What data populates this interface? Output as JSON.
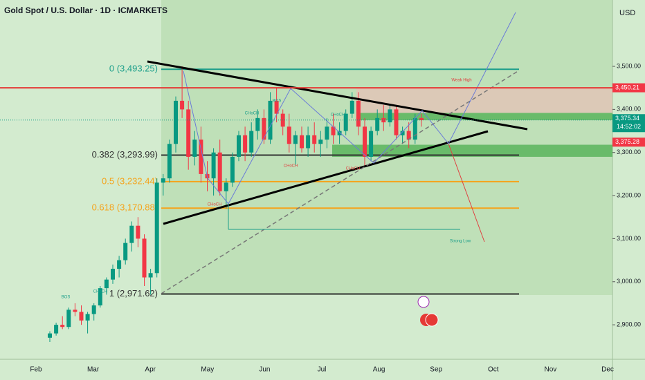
{
  "chart_data": {
    "type": "candlestick",
    "title": "Gold Spot / U.S. Dollar · 1D · ICMARKETS",
    "currency": "USD",
    "categories": [
      "Feb",
      "Mar",
      "Apr",
      "May",
      "Jun",
      "Jul",
      "Aug",
      "Sep",
      "Oct",
      "Nov",
      "Dec"
    ],
    "ylim": [
      2820,
      3654
    ],
    "yticks": [
      {
        "value": 2900,
        "label": "2,900.00"
      },
      {
        "value": 3000,
        "label": "3,000.00"
      },
      {
        "value": 3100,
        "label": "3,100.00"
      },
      {
        "value": 3200,
        "label": "3,200.00"
      },
      {
        "value": 3300,
        "label": "3,300.00"
      },
      {
        "value": 3400,
        "label": "3,400.00"
      },
      {
        "value": 3500,
        "label": "3,500.00"
      }
    ],
    "up_color": "#089981",
    "down_color": "#f23645",
    "candles": [
      [
        2870,
        2885,
        2860,
        2880
      ],
      [
        2880,
        2905,
        2875,
        2900
      ],
      [
        2900,
        2920,
        2890,
        2895
      ],
      [
        2895,
        2940,
        2890,
        2935
      ],
      [
        2935,
        2950,
        2920,
        2930
      ],
      [
        2930,
        2945,
        2900,
        2910
      ],
      [
        2910,
        2930,
        2880,
        2925
      ],
      [
        2925,
        2950,
        2910,
        2945
      ],
      [
        2945,
        2990,
        2940,
        2985
      ],
      [
        2985,
        3010,
        2970,
        3005
      ],
      [
        3005,
        3040,
        2995,
        3030
      ],
      [
        3030,
        3060,
        3010,
        3050
      ],
      [
        3050,
        3100,
        3040,
        3090
      ],
      [
        3090,
        3140,
        3070,
        3130
      ],
      [
        3130,
        3150,
        3080,
        3100
      ],
      [
        3100,
        3110,
        2990,
        3010
      ],
      [
        3010,
        3030,
        2970,
        3020
      ],
      [
        3020,
        3240,
        3010,
        3230
      ],
      [
        3230,
        3250,
        3200,
        3240
      ],
      [
        3240,
        3330,
        3230,
        3320
      ],
      [
        3320,
        3430,
        3300,
        3420
      ],
      [
        3420,
        3500,
        3380,
        3400
      ],
      [
        3400,
        3420,
        3260,
        3290
      ],
      [
        3290,
        3350,
        3270,
        3330
      ],
      [
        3330,
        3360,
        3230,
        3250
      ],
      [
        3250,
        3280,
        3210,
        3240
      ],
      [
        3240,
        3310,
        3200,
        3300
      ],
      [
        3300,
        3330,
        3200,
        3210
      ],
      [
        3210,
        3240,
        3170,
        3230
      ],
      [
        3230,
        3300,
        3220,
        3290
      ],
      [
        3290,
        3350,
        3280,
        3340
      ],
      [
        3340,
        3360,
        3280,
        3300
      ],
      [
        3300,
        3370,
        3290,
        3350
      ],
      [
        3350,
        3400,
        3330,
        3380
      ],
      [
        3380,
        3400,
        3320,
        3330
      ],
      [
        3330,
        3440,
        3320,
        3420
      ],
      [
        3420,
        3450,
        3370,
        3390
      ],
      [
        3390,
        3400,
        3340,
        3360
      ],
      [
        3360,
        3390,
        3300,
        3320
      ],
      [
        3320,
        3350,
        3270,
        3340
      ],
      [
        3340,
        3360,
        3300,
        3310
      ],
      [
        3310,
        3360,
        3290,
        3340
      ],
      [
        3340,
        3370,
        3300,
        3320
      ],
      [
        3320,
        3350,
        3290,
        3330
      ],
      [
        3330,
        3380,
        3310,
        3360
      ],
      [
        3360,
        3390,
        3320,
        3340
      ],
      [
        3340,
        3370,
        3320,
        3350
      ],
      [
        3350,
        3400,
        3340,
        3390
      ],
      [
        3390,
        3440,
        3380,
        3420
      ],
      [
        3420,
        3440,
        3340,
        3360
      ],
      [
        3360,
        3380,
        3270,
        3290
      ],
      [
        3290,
        3360,
        3280,
        3350
      ],
      [
        3350,
        3400,
        3340,
        3380
      ],
      [
        3380,
        3410,
        3350,
        3370
      ],
      [
        3370,
        3410,
        3360,
        3400
      ],
      [
        3400,
        3410,
        3330,
        3340
      ],
      [
        3340,
        3360,
        3320,
        3350
      ],
      [
        3350,
        3370,
        3310,
        3330
      ],
      [
        3330,
        3390,
        3320,
        3380
      ],
      [
        3380,
        3390,
        3360,
        3375
      ]
    ],
    "fib_levels": [
      {
        "label": "0 (3,493.25)",
        "value": 3493.25,
        "color": "#1b9e8a"
      },
      {
        "label": "0.382 (3,293.99)",
        "value": 3293.99,
        "color": "#333333"
      },
      {
        "label": "0.5 (3,232.44)",
        "value": 3232.44,
        "color": "#f5a31a"
      },
      {
        "label": "0.618 (3,170.88)",
        "value": 3170.88,
        "color": "#f5a31a"
      },
      {
        "label": "1 (2,971.62)",
        "value": 2971.62,
        "color": "#333333"
      }
    ],
    "price_badges": [
      {
        "value": 3450.21,
        "label": "3,450.21",
        "color": "#f23645"
      },
      {
        "value": 3375.34,
        "label": "3,375.34",
        "color": "#089981"
      },
      {
        "value": 3375.28,
        "label": "3,375.28",
        "color": "#f23645"
      }
    ],
    "countdown": "14:52:02",
    "zones": [
      {
        "range": [
          3375,
          3392
        ],
        "color": "#4caf50"
      },
      {
        "range": [
          3290,
          3318
        ],
        "color": "#4caf50"
      },
      {
        "range": [
          3392,
          3450.21
        ],
        "color": "#f4b6b6"
      }
    ],
    "annotations": [
      "BOS",
      "CHoCH",
      "BOS",
      "CHoCH",
      "CHoCH",
      "CHoCH",
      "CHoCH",
      "CHoCH",
      "Weak High",
      "Strong Low"
    ]
  }
}
